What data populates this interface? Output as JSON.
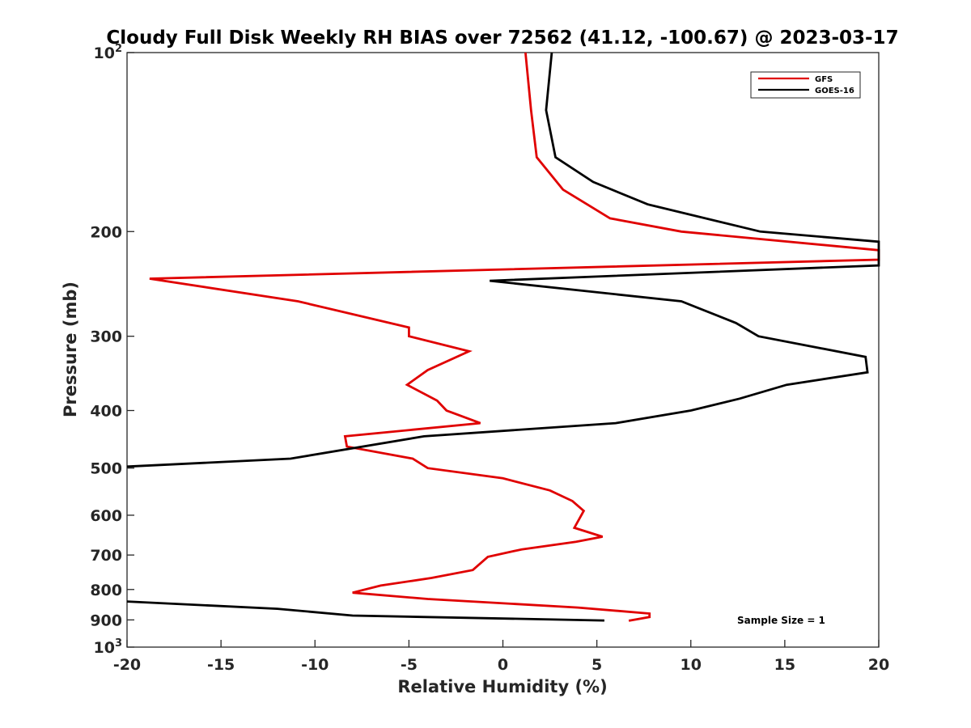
{
  "chart_data": {
    "type": "line",
    "title": "Cloudy Full Disk Weekly RH BIAS over 72562 (41.12, -100.67) @ 2023-03-17",
    "xlabel": "Relative Humidity (%)",
    "ylabel": "Pressure (mb)",
    "xlim": [
      -20,
      20
    ],
    "ylim": [
      100,
      1000
    ],
    "yscale": "log",
    "y_reversed": true,
    "x_ticks": [
      "-20",
      "-15",
      "-10",
      "-5",
      "0",
      "5",
      "10",
      "15",
      "20"
    ],
    "y_ticks": [
      {
        "value": 100,
        "base": "10",
        "exp": "2"
      },
      {
        "value": 200,
        "label": "200"
      },
      {
        "value": 300,
        "label": "300"
      },
      {
        "value": 400,
        "label": "400"
      },
      {
        "value": 500,
        "label": "500"
      },
      {
        "value": 600,
        "label": "600"
      },
      {
        "value": 700,
        "label": "700"
      },
      {
        "value": 800,
        "label": "800"
      },
      {
        "value": 900,
        "label": "900"
      },
      {
        "value": 1000,
        "base": "10",
        "exp": "3"
      }
    ],
    "grid": false,
    "legend_position": "top-right",
    "annotation": "Sample Size = 1",
    "series": [
      {
        "name": "GFS",
        "color": "#e00000",
        "points": [
          {
            "x": 1.2,
            "p": 100
          },
          {
            "x": 1.5,
            "p": 125
          },
          {
            "x": 1.8,
            "p": 150
          },
          {
            "x": 3.2,
            "p": 170
          },
          {
            "x": 5.7,
            "p": 190
          },
          {
            "x": 9.5,
            "p": 200
          },
          {
            "x": 20,
            "p": 215
          },
          {
            "x": 20,
            "p": 223
          },
          {
            "x": -18.8,
            "p": 240
          },
          {
            "x": -10.9,
            "p": 262
          },
          {
            "x": -5.0,
            "p": 290
          },
          {
            "x": -5.0,
            "p": 300
          },
          {
            "x": -1.8,
            "p": 318
          },
          {
            "x": -4.0,
            "p": 342
          },
          {
            "x": -5.1,
            "p": 362
          },
          {
            "x": -3.5,
            "p": 385
          },
          {
            "x": -3.0,
            "p": 400
          },
          {
            "x": -1.2,
            "p": 420
          },
          {
            "x": -8.4,
            "p": 442
          },
          {
            "x": -8.3,
            "p": 460
          },
          {
            "x": -4.8,
            "p": 482
          },
          {
            "x": -4.0,
            "p": 500
          },
          {
            "x": 0,
            "p": 520
          },
          {
            "x": 2.5,
            "p": 545
          },
          {
            "x": 3.7,
            "p": 568
          },
          {
            "x": 4.3,
            "p": 590
          },
          {
            "x": 3.8,
            "p": 630
          },
          {
            "x": 5.3,
            "p": 652
          },
          {
            "x": 3.9,
            "p": 665
          },
          {
            "x": 1.0,
            "p": 685
          },
          {
            "x": -0.8,
            "p": 705
          },
          {
            "x": -1.6,
            "p": 742
          },
          {
            "x": -3.8,
            "p": 765
          },
          {
            "x": -6.5,
            "p": 788
          },
          {
            "x": -8.0,
            "p": 810
          },
          {
            "x": -4.0,
            "p": 830
          },
          {
            "x": 4.0,
            "p": 858
          },
          {
            "x": 7.8,
            "p": 878
          },
          {
            "x": 7.8,
            "p": 890
          },
          {
            "x": 6.7,
            "p": 903
          }
        ]
      },
      {
        "name": "GOES-16",
        "color": "#000000",
        "points": [
          {
            "x": 2.6,
            "p": 100
          },
          {
            "x": 2.3,
            "p": 125
          },
          {
            "x": 2.8,
            "p": 150
          },
          {
            "x": 4.8,
            "p": 165
          },
          {
            "x": 7.7,
            "p": 180
          },
          {
            "x": 13.7,
            "p": 200
          },
          {
            "x": 20,
            "p": 208
          },
          {
            "x": 20,
            "p": 228
          },
          {
            "x": -0.7,
            "p": 242
          },
          {
            "x": 9.5,
            "p": 262
          },
          {
            "x": 12.4,
            "p": 285
          },
          {
            "x": 13.6,
            "p": 300
          },
          {
            "x": 19.3,
            "p": 325
          },
          {
            "x": 19.4,
            "p": 345
          },
          {
            "x": 15.1,
            "p": 362
          },
          {
            "x": 12.6,
            "p": 382
          },
          {
            "x": 10.0,
            "p": 400
          },
          {
            "x": 6.0,
            "p": 420
          },
          {
            "x": -4.2,
            "p": 442
          },
          {
            "x": -11.3,
            "p": 482
          },
          {
            "x": -20,
            "p": 497
          },
          {
            "x": null,
            "p": null
          },
          {
            "x": -20,
            "p": 838
          },
          {
            "x": -12.0,
            "p": 862
          },
          {
            "x": -8.0,
            "p": 885
          },
          {
            "x": 5.4,
            "p": 902
          }
        ]
      }
    ]
  }
}
